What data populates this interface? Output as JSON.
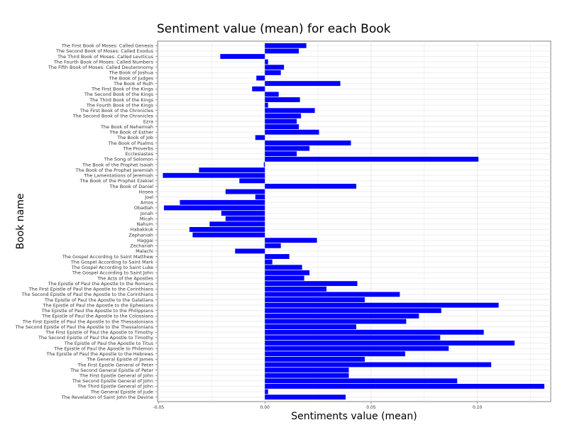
{
  "chart_data": {
    "type": "bar",
    "orientation": "horizontal",
    "title": "Sentiment value (mean) for each Book",
    "xlabel": "Sentiments value (mean)",
    "ylabel": "Book name",
    "xlim": [
      -0.0505,
      0.1345
    ],
    "x_ticks": [
      -0.05,
      0.0,
      0.05,
      0.1
    ],
    "x_tick_labels": [
      "-0.05",
      "0.00",
      "0.05",
      "0.10"
    ],
    "grid": true,
    "bar_color": "#0000ff",
    "categories": [
      "The First Book of Moses:  Called Genesis",
      "The Second Book of Moses:  Called Exodus",
      "The Third Book of Moses:  Called Leviticus",
      "The Fourth Book of Moses:  Called Numbers",
      "The Fifth Book of Moses:  Called Deuteronomy",
      "The Book of Joshua",
      "The Book of Judges",
      "The Book of Ruth",
      "The First Book of the Kings",
      "The Second Book of the Kings",
      "The Third Book of the Kings",
      "The Fourth Book of the Kings",
      "The First Book of the Chronicles",
      "The Second Book of the Chronicles",
      "Ezra",
      "The Book of Nehemiah",
      "The Book of Esther",
      "The Book of Job",
      "The Book of Psalms",
      "The Proverbs",
      "Ecclesiastes",
      "The Song of Solomon",
      "The Book of the Prophet Isaiah",
      "The Book of the Prophet Jeremiah",
      "The Lamentations of Jeremiah",
      "The Book of the Prophet Ezekiel",
      "The Book of Daniel",
      "Hosea",
      "Joel",
      "Amos",
      "Obadiah",
      "Jonah",
      "Micah",
      "Nahum",
      "Habakkuk",
      "Zephaniah",
      "Haggai",
      "Zechariah",
      "Malachi",
      "The Gospel According to Saint Matthew",
      "The Gospel According to Saint Mark",
      "The Gospel According to Saint Luke",
      "The Gospel According to Saint John",
      "The Acts of the Apostles",
      "The Epistle of Paul the Apostle to the Romans",
      "The First Epistle of Paul the Apostle to the Corinthians",
      "The Second Epistle of Paul the Apostle to the Corinthians",
      "The Epistle of Paul the Apostle to the Galatians",
      "The Epistle of Paul the Apostle to the Ephesians",
      "The Epistle of Paul the Apostle to the Philippians",
      "The Epistle of Paul the Apostle to the Colossians",
      "The First Epistle of Paul the Apostle to the Thessalonians",
      "The Second Epistle of Paul the Apostle to the Thessalonians",
      "The First Epistle of Paul the Apostle to Timothy",
      "The Second Epistle of Paul the Apostle to Timothy",
      "The Epistle of Paul the Apostle to Titus",
      "The Epistle of Paul the Apostle to Philemon",
      "The Epistle of Paul the Apostle to the Hebrews",
      "The General Epistle of James",
      "The First Epistle General of Peter",
      "The Second General Epistle of Peter",
      "The First Epistle General of John",
      "The Second Epistle General of John",
      "The Third Epistle General of John",
      "The General Epistle of Jude",
      "The Revelation of Saint John the Devine"
    ],
    "values": [
      0.0195,
      0.016,
      -0.021,
      0.0015,
      0.009,
      0.0075,
      -0.004,
      0.0355,
      -0.006,
      0.0065,
      0.0165,
      0.0015,
      0.0235,
      0.017,
      0.015,
      0.016,
      0.0255,
      -0.0045,
      0.0405,
      0.021,
      0.015,
      0.1005,
      -0.0005,
      -0.031,
      -0.048,
      -0.012,
      0.043,
      -0.0185,
      -0.0045,
      -0.04,
      -0.0475,
      -0.0205,
      -0.0185,
      -0.026,
      -0.0355,
      -0.034,
      0.0245,
      0.0075,
      -0.014,
      0.0115,
      0.0035,
      0.0175,
      0.021,
      0.0185,
      0.0435,
      0.029,
      0.0635,
      0.047,
      0.11,
      0.083,
      0.0725,
      0.0665,
      0.043,
      0.103,
      0.0825,
      0.1175,
      0.0865,
      0.066,
      0.047,
      0.1065,
      0.0395,
      0.0395,
      0.0905,
      0.1315,
      0.0015,
      0.038
    ]
  }
}
